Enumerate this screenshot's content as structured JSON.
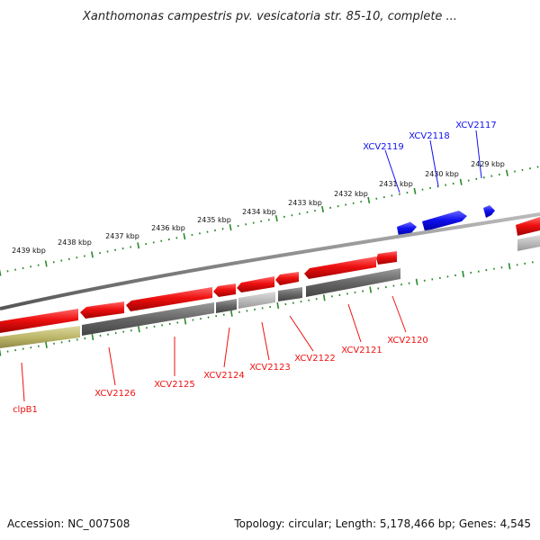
{
  "title": "Xanthomonas campestris pv. vesicatoria str. 85-10, complete ...",
  "footer": {
    "accession": "Accession: NC_007508",
    "summary": "Topology: circular; Length: 5,178,466 bp; Genes: 4,545"
  },
  "colors": {
    "forward_gene": "#1010ee",
    "reverse_gene": "#ee1010",
    "ruler": "#2a8a2a",
    "backbone": "#888888",
    "pseudo_track": "#bdb76b",
    "feature_track": "#666666"
  },
  "ticks": [
    {
      "label": "2439 kbp"
    },
    {
      "label": "2438 kbp"
    },
    {
      "label": "2437 kbp"
    },
    {
      "label": "2436 kbp"
    },
    {
      "label": "2435 kbp"
    },
    {
      "label": "2434 kbp"
    },
    {
      "label": "2433 kbp"
    },
    {
      "label": "2432 kbp"
    },
    {
      "label": "2431 kbp"
    },
    {
      "label": "2430 kbp"
    },
    {
      "label": "2429 kbp"
    }
  ],
  "forward_genes": [
    {
      "name": "XCV2119"
    },
    {
      "name": "XCV2118"
    },
    {
      "name": "XCV2117"
    }
  ],
  "reverse_genes": [
    {
      "name": "clpB1"
    },
    {
      "name": "XCV2126"
    },
    {
      "name": "XCV2125"
    },
    {
      "name": "XCV2124"
    },
    {
      "name": "XCV2123"
    },
    {
      "name": "XCV2122"
    },
    {
      "name": "XCV2121"
    },
    {
      "name": "XCV2120"
    }
  ]
}
